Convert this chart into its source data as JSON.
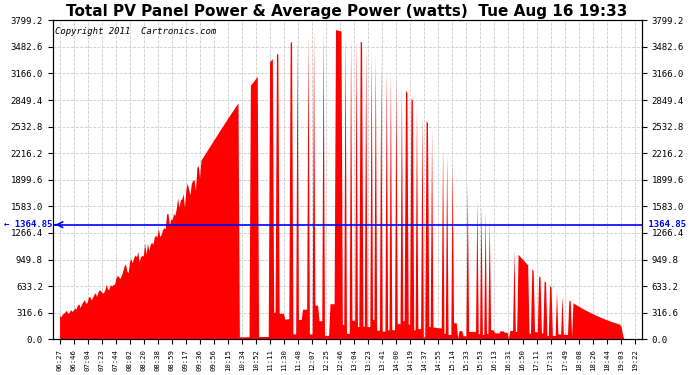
{
  "title": "Total PV Panel Power & Average Power (watts)  Tue Aug 16 19:33",
  "copyright": "Copyright 2011  Cartronics.com",
  "avg_power": 1364.85,
  "y_max": 3799.2,
  "y_min": 0.0,
  "y_ticks": [
    0.0,
    316.6,
    633.2,
    949.8,
    1266.4,
    1583.0,
    1899.6,
    2216.2,
    2532.8,
    2849.4,
    3166.0,
    3482.6,
    3799.2
  ],
  "x_labels": [
    "06:27",
    "06:46",
    "07:04",
    "07:23",
    "07:44",
    "08:02",
    "08:20",
    "08:38",
    "08:59",
    "09:17",
    "09:36",
    "09:56",
    "10:15",
    "10:34",
    "10:52",
    "11:11",
    "11:30",
    "11:48",
    "12:07",
    "12:25",
    "12:46",
    "13:04",
    "13:23",
    "13:41",
    "14:00",
    "14:19",
    "14:37",
    "14:55",
    "15:14",
    "15:33",
    "15:53",
    "16:13",
    "16:31",
    "16:50",
    "17:11",
    "17:31",
    "17:49",
    "18:08",
    "18:26",
    "18:44",
    "19:03",
    "19:22"
  ],
  "fill_color": "#FF0000",
  "line_color": "#0000FF",
  "bg_color": "#FFFFFF",
  "grid_color": "#CCCCCC",
  "title_fontsize": 11,
  "copyright_fontsize": 6.5,
  "avg_label": "1364.85",
  "figwidth": 6.9,
  "figheight": 3.75,
  "dpi": 100
}
